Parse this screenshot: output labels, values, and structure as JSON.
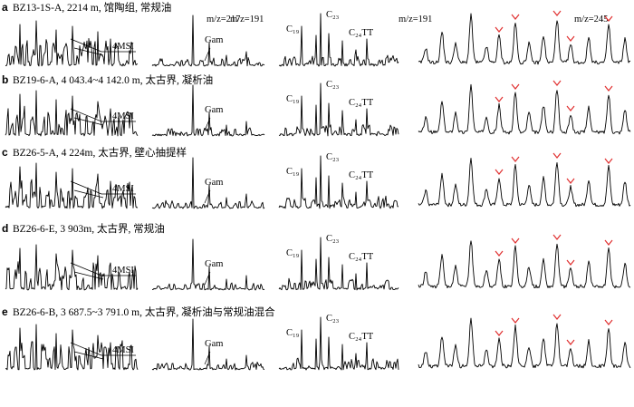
{
  "header": {
    "mz_217": "m/z=217",
    "mz_191_a": "m/z=191",
    "mz_191_b": "m/z=191",
    "mz_245": "m/z=245"
  },
  "colors": {
    "trace": "#000000",
    "marker": "#e03030"
  },
  "chart_data": {
    "type": "line",
    "panels": [
      "m/z=217",
      "m/z=191",
      "m/z=191",
      "m/z=245"
    ],
    "rows": [
      {
        "id": "a",
        "label": "a",
        "sample": "BZ13-1S-A, 2214 m, 馆陶组, 常规油",
        "annotations": {
          "msi": "4MSI",
          "gam": "Gam",
          "c19": "C₁₉",
          "c23": "C₂₃",
          "c24": "C₂₄TT"
        }
      },
      {
        "id": "b",
        "label": "b",
        "sample": "BZ19-6-A, 4 043.4~4 142.0 m, 太古界, 凝析油",
        "annotations": {
          "msi": "4MSI",
          "gam": "Gam",
          "c19": "C₁₉",
          "c23": "C₂₃",
          "c24": "C₂₄TT"
        }
      },
      {
        "id": "c",
        "label": "c",
        "sample": "BZ26-5-A, 4 224m, 太古界, 壁心抽提样",
        "annotations": {
          "msi": "4MSI",
          "gam": "Gam",
          "c19": "C₁₉",
          "c23": "C₂₃",
          "c24": "C₂₄TT"
        }
      },
      {
        "id": "d",
        "label": "d",
        "sample": "BZ26-6-E, 3 903m, 太古界, 常规油",
        "annotations": {
          "msi": "4MSI",
          "gam": "Gam",
          "c19": "C₁₉",
          "c23": "C₂₃",
          "c24": "C₂₄TT"
        }
      },
      {
        "id": "e",
        "label": "e",
        "sample": "BZ26-6-B, 3 687.5~3 791.0 m, 太古界, 凝析油与常规油混合",
        "annotations": {
          "msi": "4MSI",
          "gam": "Gam",
          "c19": "C₁₉",
          "c23": "C₂₃",
          "c24": "C₂₄TT"
        }
      }
    ]
  }
}
